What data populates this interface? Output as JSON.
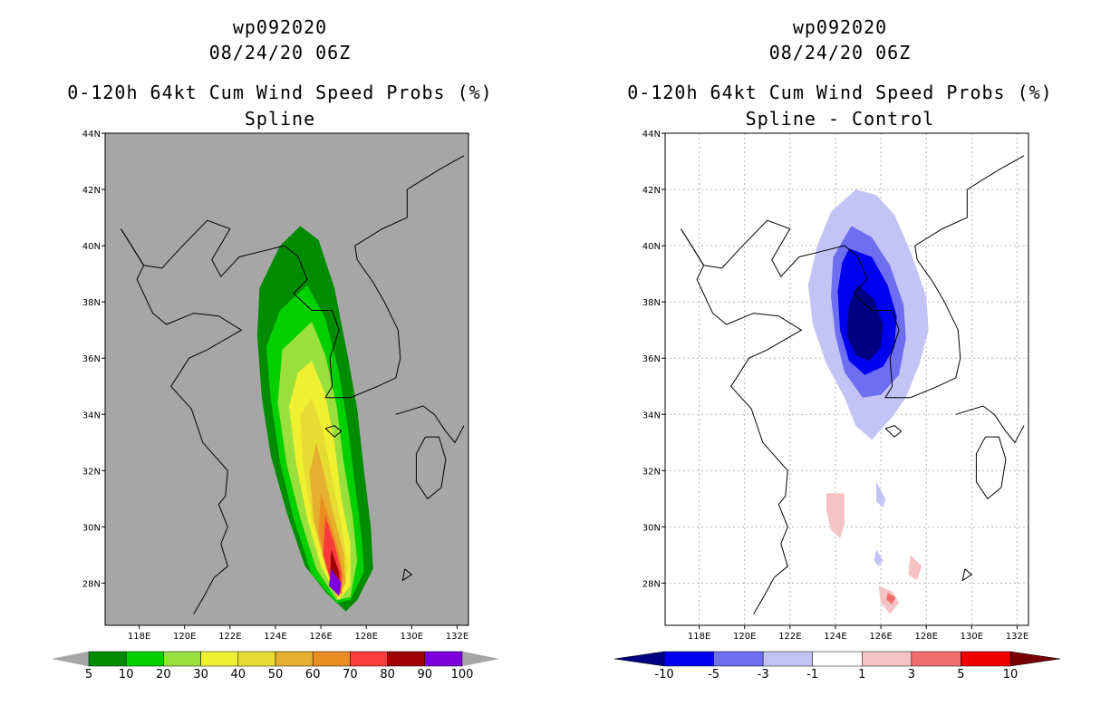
{
  "chart_data": [
    {
      "type": "heatmap",
      "storm_id": "wp092020",
      "datetime": "08/24/20 06Z",
      "title": "0-120h 64kt Cum Wind Speed Probs (%)",
      "subtitle": "Spline",
      "xlabel": "",
      "ylabel": "",
      "xlim": [
        116.5,
        132.5
      ],
      "ylim": [
        26.5,
        44
      ],
      "x_ticks": [
        "118E",
        "120E",
        "122E",
        "124E",
        "126E",
        "128E",
        "130E",
        "132E"
      ],
      "y_ticks": [
        "28N",
        "30N",
        "32N",
        "34N",
        "36N",
        "38N",
        "40N",
        "42N",
        "44N"
      ],
      "grid": false,
      "background_color": "#a6a6a6",
      "colorbar": {
        "labels": [
          "5",
          "10",
          "20",
          "30",
          "40",
          "50",
          "60",
          "70",
          "80",
          "90",
          "100"
        ],
        "colors": [
          "#008c00",
          "#00d000",
          "#9ae03c",
          "#f0f032",
          "#e6dc32",
          "#e6af2d",
          "#eb8c23",
          "#fa3c3c",
          "#a00000",
          "#7d00dc"
        ],
        "under_color": "#a6a6a6",
        "over_color": "#a6a6a6"
      },
      "contours": [
        {
          "level": 5,
          "color": "#008c00",
          "points": [
            [
              125.1,
              40.7
            ],
            [
              125.9,
              40.2
            ],
            [
              126.6,
              38.5
            ],
            [
              127.2,
              36
            ],
            [
              127.6,
              34.2
            ],
            [
              127.9,
              32
            ],
            [
              128.2,
              30
            ],
            [
              128.3,
              28.5
            ],
            [
              127.6,
              27.4
            ],
            [
              127.1,
              27.0
            ],
            [
              126.3,
              27.6
            ],
            [
              125.3,
              28.6
            ],
            [
              124.5,
              30.5
            ],
            [
              123.8,
              32.5
            ],
            [
              123.4,
              34.6
            ],
            [
              123.2,
              36.8
            ],
            [
              123.3,
              38.5
            ],
            [
              124.2,
              40.0
            ]
          ]
        },
        {
          "level": 10,
          "color": "#00d000",
          "points": [
            [
              125.4,
              38.6
            ],
            [
              126.2,
              37.4
            ],
            [
              126.8,
              35.5
            ],
            [
              127.2,
              33.5
            ],
            [
              127.5,
              31.5
            ],
            [
              127.8,
              29.6
            ],
            [
              127.9,
              28.4
            ],
            [
              127.3,
              27.4
            ],
            [
              126.7,
              27.3
            ],
            [
              125.6,
              28.3
            ],
            [
              124.8,
              30.3
            ],
            [
              124.2,
              32.3
            ],
            [
              123.8,
              34.5
            ],
            [
              123.6,
              36.4
            ],
            [
              124.2,
              37.7
            ]
          ]
        },
        {
          "level": 20,
          "color": "#9ae03c",
          "points": [
            [
              125.6,
              37.3
            ],
            [
              126.2,
              36.1
            ],
            [
              126.7,
              34.3
            ],
            [
              127.0,
              32.3
            ],
            [
              127.4,
              30.4
            ],
            [
              127.6,
              28.8
            ],
            [
              127.3,
              27.5
            ],
            [
              126.7,
              27.4
            ],
            [
              125.8,
              28.5
            ],
            [
              125.1,
              30.3
            ],
            [
              124.5,
              32.2
            ],
            [
              124.1,
              34.4
            ],
            [
              124.3,
              36.3
            ]
          ]
        },
        {
          "level": 30,
          "color": "#f0f032",
          "points": [
            [
              125.6,
              35.9
            ],
            [
              126.2,
              34.7
            ],
            [
              126.6,
              33.0
            ],
            [
              126.9,
              31.0
            ],
            [
              127.3,
              29.4
            ],
            [
              127.3,
              27.9
            ],
            [
              126.8,
              27.4
            ],
            [
              126.0,
              28.6
            ],
            [
              125.4,
              30.3
            ],
            [
              124.9,
              32.3
            ],
            [
              124.6,
              34.3
            ],
            [
              125.0,
              35.5
            ]
          ]
        },
        {
          "level": 40,
          "color": "#e6dc32",
          "points": [
            [
              125.6,
              34.6
            ],
            [
              126.1,
              33.4
            ],
            [
              126.5,
              31.7
            ],
            [
              126.9,
              30.1
            ],
            [
              127.2,
              28.6
            ],
            [
              126.9,
              27.5
            ],
            [
              126.2,
              28.6
            ],
            [
              125.6,
              30.3
            ],
            [
              125.2,
              32.3
            ],
            [
              125.1,
              34.0
            ]
          ]
        },
        {
          "level": 50,
          "color": "#e6af2d",
          "points": [
            [
              125.8,
              33.0
            ],
            [
              126.2,
              31.7
            ],
            [
              126.6,
              30.3
            ],
            [
              127.0,
              29.1
            ],
            [
              127.1,
              28.0
            ],
            [
              126.7,
              27.5
            ],
            [
              126.2,
              28.6
            ],
            [
              125.7,
              30.2
            ],
            [
              125.5,
              31.9
            ]
          ]
        },
        {
          "level": 60,
          "color": "#eb8c23",
          "points": [
            [
              126.0,
              31.2
            ],
            [
              126.4,
              30.2
            ],
            [
              126.8,
              29.1
            ],
            [
              127.0,
              28.2
            ],
            [
              126.8,
              27.5
            ],
            [
              126.3,
              28.4
            ],
            [
              125.9,
              29.8
            ]
          ]
        },
        {
          "level": 70,
          "color": "#fa3c3c",
          "points": [
            [
              126.2,
              30.4
            ],
            [
              126.6,
              29.4
            ],
            [
              126.9,
              28.4
            ],
            [
              126.9,
              27.6
            ],
            [
              126.5,
              27.9
            ],
            [
              126.1,
              29.0
            ]
          ]
        },
        {
          "level": 80,
          "color": "#a00000",
          "points": [
            [
              126.45,
              29.2
            ],
            [
              126.8,
              28.4
            ],
            [
              126.85,
              27.7
            ],
            [
              126.4,
              28.0
            ]
          ]
        },
        {
          "level": 90,
          "color": "#7d00dc",
          "points": [
            [
              126.45,
              28.5
            ],
            [
              126.9,
              28.0
            ],
            [
              126.8,
              27.55
            ],
            [
              126.35,
              27.9
            ]
          ]
        }
      ]
    },
    {
      "type": "heatmap",
      "storm_id": "wp092020",
      "datetime": "08/24/20 06Z",
      "title": "0-120h 64kt Cum Wind Speed Probs (%)",
      "subtitle": "Spline - Control",
      "xlabel": "",
      "ylabel": "",
      "xlim": [
        116.5,
        132.5
      ],
      "ylim": [
        26.5,
        44
      ],
      "x_ticks": [
        "118E",
        "120E",
        "122E",
        "124E",
        "126E",
        "128E",
        "130E",
        "132E"
      ],
      "y_ticks": [
        "28N",
        "30N",
        "32N",
        "34N",
        "36N",
        "38N",
        "40N",
        "42N",
        "44N"
      ],
      "grid": true,
      "background_color": "#ffffff",
      "colorbar": {
        "labels": [
          "-10",
          "-5",
          "-3",
          "-1",
          "1",
          "3",
          "5",
          "10"
        ],
        "colors": [
          "#0000f0",
          "#6e6ef0",
          "#c3c3f5",
          "#ffffff",
          "#f5c3c3",
          "#f06e6e",
          "#f00000"
        ],
        "under_color": "#000082",
        "over_color": "#780000"
      },
      "contours": [
        {
          "level": -1,
          "color": "#c3c3f5",
          "points": [
            [
              124.9,
              42.0
            ],
            [
              125.8,
              41.8
            ],
            [
              126.6,
              41.1
            ],
            [
              127.3,
              39.8
            ],
            [
              128.0,
              38.2
            ],
            [
              128.1,
              37.0
            ],
            [
              127.7,
              35.8
            ],
            [
              127.1,
              34.6
            ],
            [
              126.5,
              33.9
            ],
            [
              125.6,
              33.1
            ],
            [
              124.9,
              33.6
            ],
            [
              124.4,
              34.6
            ],
            [
              123.6,
              35.8
            ],
            [
              123.0,
              37.2
            ],
            [
              122.8,
              38.6
            ],
            [
              123.2,
              40.0
            ],
            [
              123.8,
              41.2
            ]
          ]
        },
        {
          "level": -3,
          "color": "#6e6ef0",
          "points": [
            [
              124.7,
              40.7
            ],
            [
              125.6,
              40.3
            ],
            [
              126.4,
              39.3
            ],
            [
              127.0,
              37.9
            ],
            [
              127.1,
              36.7
            ],
            [
              126.8,
              35.4
            ],
            [
              126.0,
              34.7
            ],
            [
              125.2,
              34.6
            ],
            [
              124.4,
              35.5
            ],
            [
              124.0,
              36.8
            ],
            [
              123.8,
              38.2
            ],
            [
              123.9,
              39.6
            ]
          ]
        },
        {
          "level": -5,
          "color": "#0000f0",
          "points": [
            [
              124.6,
              39.9
            ],
            [
              125.6,
              39.6
            ],
            [
              126.3,
              38.6
            ],
            [
              126.7,
              37.5
            ],
            [
              126.6,
              36.4
            ],
            [
              126.1,
              35.7
            ],
            [
              125.3,
              35.4
            ],
            [
              124.6,
              35.9
            ],
            [
              124.2,
              37.0
            ],
            [
              124.1,
              38.4
            ],
            [
              124.3,
              39.4
            ]
          ]
        },
        {
          "level": -10,
          "color": "#000082",
          "points": [
            [
              125.0,
              38.6
            ],
            [
              125.7,
              38.1
            ],
            [
              126.1,
              37.2
            ],
            [
              126.0,
              36.4
            ],
            [
              125.5,
              35.9
            ],
            [
              124.9,
              36.1
            ],
            [
              124.5,
              36.8
            ],
            [
              124.6,
              37.9
            ]
          ]
        },
        {
          "level": -1,
          "color": "#c3c3f5",
          "points": [
            [
              125.8,
              31.6
            ],
            [
              126.2,
              31.0
            ],
            [
              126.1,
              30.7
            ],
            [
              125.8,
              30.9
            ]
          ]
        },
        {
          "level": -1,
          "color": "#c3c3f5",
          "points": [
            [
              125.8,
              29.2
            ],
            [
              126.1,
              28.8
            ],
            [
              125.9,
              28.6
            ],
            [
              125.7,
              28.8
            ]
          ]
        },
        {
          "level": 1,
          "color": "#f5c3c3",
          "points": [
            [
              123.6,
              31.2
            ],
            [
              124.4,
              31.2
            ],
            [
              124.4,
              30.1
            ],
            [
              124.2,
              29.6
            ],
            [
              123.8,
              29.9
            ],
            [
              123.6,
              30.6
            ]
          ]
        },
        {
          "level": 1,
          "color": "#f5c3c3",
          "points": [
            [
              127.3,
              29.0
            ],
            [
              127.8,
              28.6
            ],
            [
              127.6,
              28.1
            ],
            [
              127.2,
              28.3
            ]
          ]
        },
        {
          "level": 1,
          "color": "#f5c3c3",
          "points": [
            [
              125.9,
              27.9
            ],
            [
              126.5,
              27.7
            ],
            [
              126.8,
              27.3
            ],
            [
              126.4,
              26.9
            ],
            [
              126.0,
              27.3
            ]
          ]
        },
        {
          "level": 3,
          "color": "#f06e6e",
          "points": [
            [
              126.3,
              27.65
            ],
            [
              126.65,
              27.5
            ],
            [
              126.5,
              27.25
            ],
            [
              126.25,
              27.4
            ]
          ]
        }
      ]
    }
  ]
}
